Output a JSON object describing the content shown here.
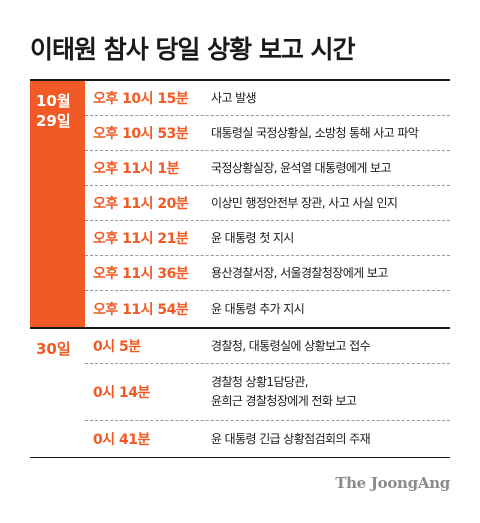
{
  "title": "이태원 참사 당일 상황 보고 시간",
  "brand": "The JoongAng",
  "colors": {
    "accent": "#f15a24",
    "text": "#1a1a1a",
    "muted": "#8c8c8c"
  },
  "sections": [
    {
      "date_line1": "10월",
      "date_line2": "29일",
      "rows": [
        {
          "time": "오후 10시 15분",
          "event": "사고 발생"
        },
        {
          "time": "오후 10시 53분",
          "event": "대통령실 국정상황실, 소방청 통해 사고 파악"
        },
        {
          "time": "오후 11시 1분",
          "event": "국정상황실장, 윤석열 대통령에게 보고"
        },
        {
          "time": "오후 11시 20분",
          "event": "이상민 행정안전부 장관, 사고 사실 인지"
        },
        {
          "time": "오후 11시 21분",
          "event": "윤 대통령 첫 지시"
        },
        {
          "time": "오후 11시 36분",
          "event": "용산경찰서장, 서울경찰청장에게 보고"
        },
        {
          "time": "오후 11시 54분",
          "event": "윤 대통령 추가 지시"
        }
      ]
    },
    {
      "date_line1": "30일",
      "rows": [
        {
          "time": "0시 5분",
          "event": "경찰청, 대통령실에 상황보고 접수"
        },
        {
          "time": "0시 14분",
          "event_line1": "경찰청 상황1담당관,",
          "event_line2": "윤희근 경찰청장에게 전화 보고"
        },
        {
          "time": "0시 41분",
          "event": "윤 대통령 긴급 상황점검회의 주재"
        }
      ]
    }
  ]
}
